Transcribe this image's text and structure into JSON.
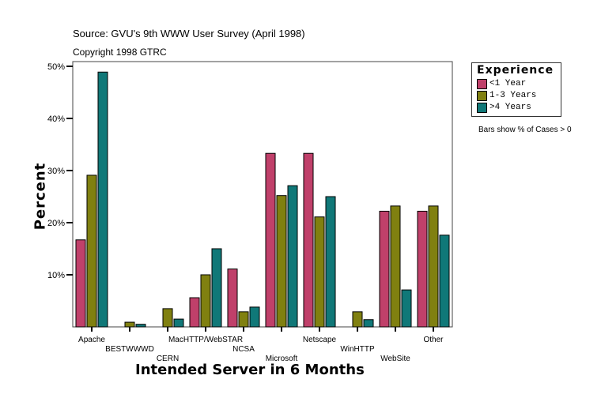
{
  "chart_data": {
    "type": "bar",
    "title": "Source: GVU's 9th WWW User Survey (April 1998)",
    "subtitle": "Copyright 1998 GTRC",
    "xlabel": "Intended Server in 6 Months",
    "ylabel": "Percent",
    "ylim": [
      0,
      50
    ],
    "yticks": [
      "10%",
      "20%",
      "30%",
      "40%",
      "50%"
    ],
    "categories": [
      "Apache",
      "BESTWWWD",
      "CERN",
      "MacHTTP/WebSTAR",
      "NCSA",
      "Microsoft",
      "Netscape",
      "WinHTTP",
      "WebSite",
      "Other"
    ],
    "legend_title": "Experience",
    "legend_placement": "top-right",
    "note": "Bars show % of Cases > 0",
    "series": [
      {
        "name": "<1 Year",
        "color": "#c0406a",
        "values": [
          16.7,
          0,
          0,
          5.6,
          11.1,
          33.3,
          33.3,
          0,
          22.2,
          22.2
        ]
      },
      {
        "name": "1-3 Years",
        "color": "#808010",
        "values": [
          29.1,
          0.9,
          3.5,
          10.0,
          2.9,
          25.2,
          21.1,
          2.9,
          23.2,
          23.2
        ]
      },
      {
        "name": ">4 Years",
        "color": "#107878",
        "values": [
          48.9,
          0.5,
          1.5,
          15.0,
          3.8,
          27.1,
          25.0,
          1.4,
          7.1,
          17.6
        ]
      }
    ]
  }
}
